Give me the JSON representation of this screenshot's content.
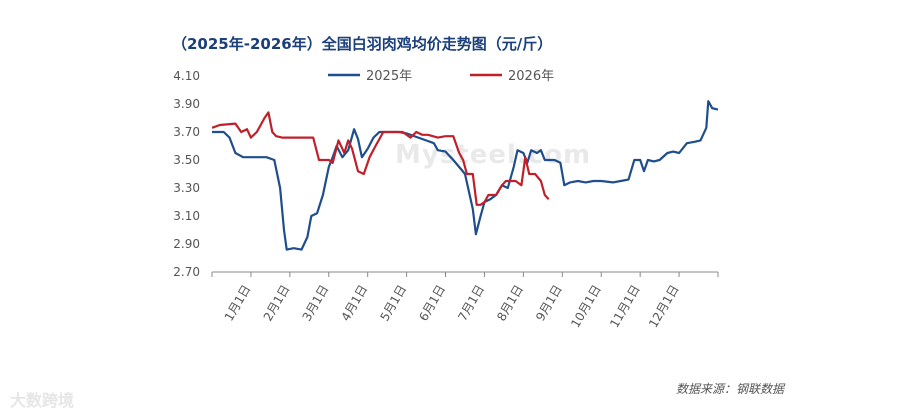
{
  "title": "（2025年-2026年）全国白羽肉鸡均价走势图（元/斤）",
  "source": "数据来源：钢联数据",
  "watermark": "Mysteel.com",
  "brand": "大数跨境",
  "colors": {
    "series_2025": "#1f4e8c",
    "series_2026": "#c0202a",
    "axis": "#888888"
  },
  "chart_data": {
    "type": "line",
    "title": "（2025年-2026年）全国白羽肉鸡均价走势图（元/斤）",
    "ylim": [
      2.7,
      4.1
    ],
    "yticks": [
      "4.10",
      "3.90",
      "3.70",
      "3.50",
      "3.30",
      "3.10",
      "2.90",
      "2.70"
    ],
    "xticks": [
      "1月1日",
      "2月1日",
      "3月1日",
      "4月1日",
      "5月1日",
      "6月1日",
      "7月1日",
      "8月1日",
      "9月1日",
      "10月1日",
      "11月1日",
      "12月1日"
    ],
    "legend_position": "top",
    "grid": false,
    "series": [
      {
        "name": "2025年",
        "points": [
          [
            0,
            3.7
          ],
          [
            0.3,
            3.7
          ],
          [
            0.45,
            3.66
          ],
          [
            0.6,
            3.55
          ],
          [
            0.8,
            3.52
          ],
          [
            1.4,
            3.52
          ],
          [
            1.6,
            3.5
          ],
          [
            1.75,
            3.3
          ],
          [
            1.85,
            3.0
          ],
          [
            1.92,
            2.86
          ],
          [
            2.1,
            2.87
          ],
          [
            2.3,
            2.86
          ],
          [
            2.45,
            2.95
          ],
          [
            2.55,
            3.1
          ],
          [
            2.7,
            3.12
          ],
          [
            2.85,
            3.25
          ],
          [
            3.0,
            3.45
          ],
          [
            3.1,
            3.52
          ],
          [
            3.2,
            3.6
          ],
          [
            3.35,
            3.52
          ],
          [
            3.5,
            3.57
          ],
          [
            3.65,
            3.72
          ],
          [
            3.75,
            3.65
          ],
          [
            3.85,
            3.52
          ],
          [
            4.0,
            3.58
          ],
          [
            4.15,
            3.66
          ],
          [
            4.3,
            3.7
          ],
          [
            4.5,
            3.7
          ],
          [
            4.8,
            3.7
          ],
          [
            5.0,
            3.69
          ],
          [
            5.3,
            3.66
          ],
          [
            5.5,
            3.64
          ],
          [
            5.7,
            3.62
          ],
          [
            5.8,
            3.57
          ],
          [
            6.0,
            3.56
          ],
          [
            6.2,
            3.5
          ],
          [
            6.35,
            3.45
          ],
          [
            6.5,
            3.4
          ],
          [
            6.7,
            3.15
          ],
          [
            6.78,
            2.97
          ],
          [
            6.9,
            3.1
          ],
          [
            7.0,
            3.2
          ],
          [
            7.15,
            3.22
          ],
          [
            7.3,
            3.25
          ],
          [
            7.45,
            3.32
          ],
          [
            7.6,
            3.3
          ],
          [
            7.75,
            3.45
          ],
          [
            7.85,
            3.57
          ],
          [
            8.0,
            3.55
          ],
          [
            8.1,
            3.48
          ],
          [
            8.2,
            3.57
          ],
          [
            8.35,
            3.55
          ],
          [
            8.45,
            3.57
          ],
          [
            8.55,
            3.5
          ],
          [
            8.65,
            3.5
          ],
          [
            8.8,
            3.5
          ],
          [
            8.95,
            3.48
          ],
          [
            9.05,
            3.32
          ],
          [
            9.2,
            3.34
          ],
          [
            9.4,
            3.35
          ],
          [
            9.6,
            3.34
          ],
          [
            9.8,
            3.35
          ],
          [
            10.0,
            3.35
          ],
          [
            10.3,
            3.34
          ],
          [
            10.5,
            3.35
          ],
          [
            10.7,
            3.36
          ],
          [
            10.85,
            3.5
          ],
          [
            11.0,
            3.5
          ],
          [
            11.1,
            3.42
          ],
          [
            11.2,
            3.5
          ],
          [
            11.35,
            3.49
          ],
          [
            11.5,
            3.5
          ],
          [
            11.7,
            3.55
          ],
          [
            11.85,
            3.56
          ],
          [
            12.0,
            3.55
          ],
          [
            12.2,
            3.62
          ],
          [
            12.4,
            3.63
          ],
          [
            12.55,
            3.64
          ],
          [
            12.7,
            3.73
          ],
          [
            12.75,
            3.92
          ],
          [
            12.85,
            3.87
          ],
          [
            13.0,
            3.86
          ]
        ]
      },
      {
        "name": "2026年",
        "points": [
          [
            0,
            3.73
          ],
          [
            0.2,
            3.75
          ],
          [
            0.6,
            3.76
          ],
          [
            0.75,
            3.7
          ],
          [
            0.9,
            3.72
          ],
          [
            1.0,
            3.66
          ],
          [
            1.15,
            3.7
          ],
          [
            1.25,
            3.75
          ],
          [
            1.35,
            3.8
          ],
          [
            1.45,
            3.84
          ],
          [
            1.55,
            3.7
          ],
          [
            1.65,
            3.67
          ],
          [
            1.8,
            3.66
          ],
          [
            2.1,
            3.66
          ],
          [
            2.4,
            3.66
          ],
          [
            2.6,
            3.66
          ],
          [
            2.75,
            3.5
          ],
          [
            3.0,
            3.5
          ],
          [
            3.1,
            3.48
          ],
          [
            3.25,
            3.64
          ],
          [
            3.4,
            3.55
          ],
          [
            3.5,
            3.64
          ],
          [
            3.6,
            3.58
          ],
          [
            3.75,
            3.42
          ],
          [
            3.9,
            3.4
          ],
          [
            4.05,
            3.52
          ],
          [
            4.2,
            3.6
          ],
          [
            4.4,
            3.7
          ],
          [
            4.6,
            3.7
          ],
          [
            4.9,
            3.7
          ],
          [
            5.1,
            3.66
          ],
          [
            5.25,
            3.7
          ],
          [
            5.4,
            3.68
          ],
          [
            5.55,
            3.68
          ],
          [
            5.8,
            3.66
          ],
          [
            6.0,
            3.67
          ],
          [
            6.2,
            3.67
          ],
          [
            6.35,
            3.55
          ],
          [
            6.45,
            3.5
          ],
          [
            6.55,
            3.4
          ],
          [
            6.7,
            3.4
          ],
          [
            6.8,
            3.18
          ],
          [
            6.9,
            3.18
          ],
          [
            7.0,
            3.2
          ],
          [
            7.1,
            3.25
          ],
          [
            7.3,
            3.25
          ],
          [
            7.45,
            3.32
          ],
          [
            7.55,
            3.35
          ],
          [
            7.7,
            3.35
          ],
          [
            7.8,
            3.35
          ],
          [
            7.95,
            3.32
          ],
          [
            8.05,
            3.52
          ],
          [
            8.15,
            3.4
          ],
          [
            8.3,
            3.4
          ],
          [
            8.45,
            3.35
          ],
          [
            8.55,
            3.25
          ],
          [
            8.65,
            3.22
          ]
        ]
      }
    ]
  }
}
